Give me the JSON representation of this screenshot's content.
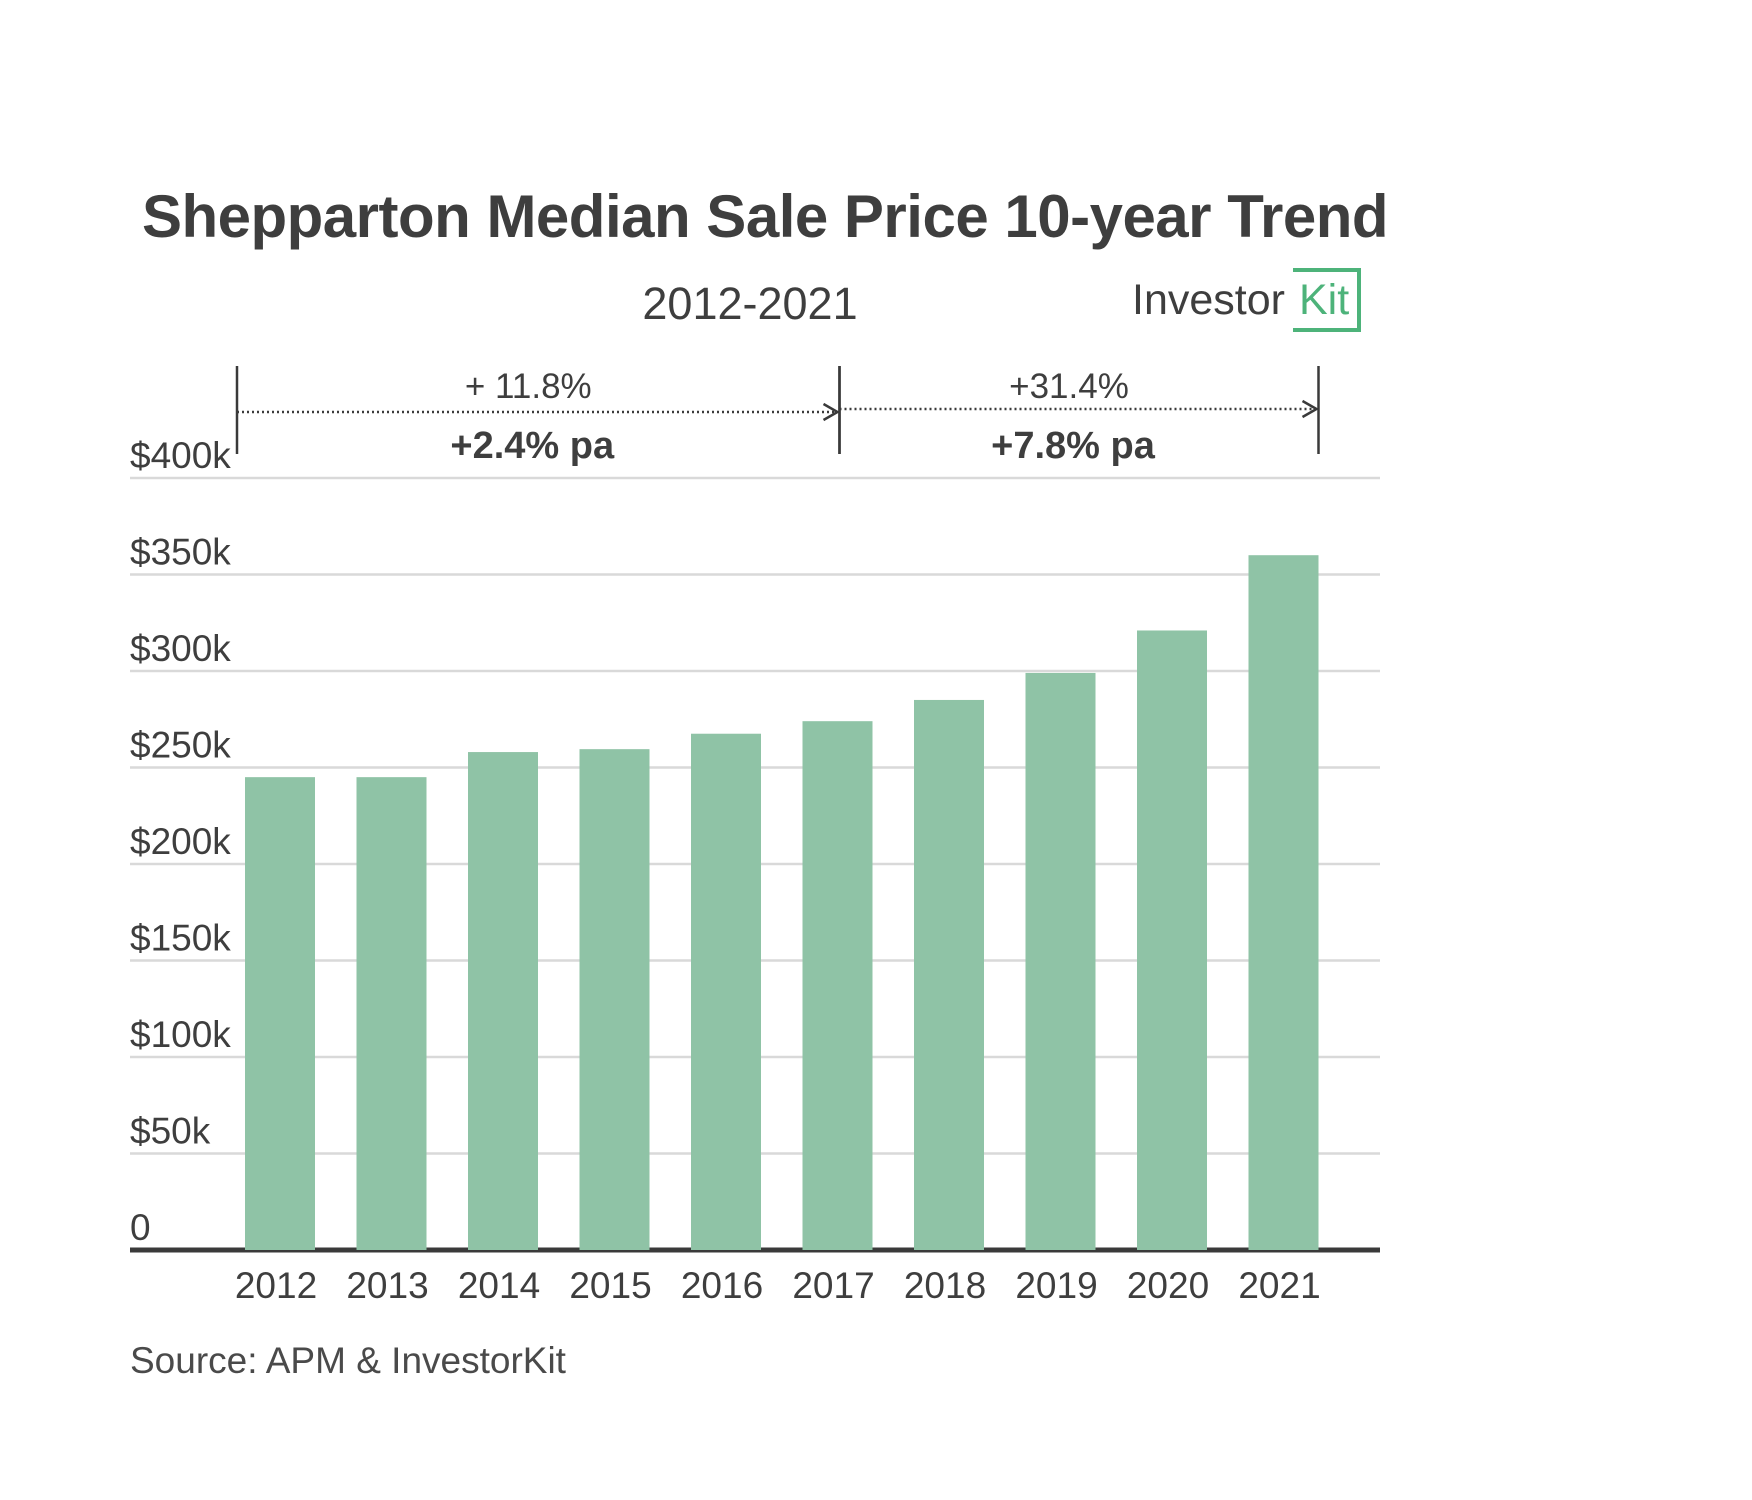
{
  "header": {
    "title": "Shepparton Median Sale Price 10-year Trend",
    "subtitle": "2012-2021",
    "logo_word": "Investor",
    "logo_kit": "Kit"
  },
  "footer": {
    "source": "Source: APM & InvestorKit"
  },
  "colors": {
    "bar": "#8fc3a6",
    "grid": "#d9d9d9",
    "axis": "#3a3a3a",
    "text": "#3e3e3e",
    "brand": "#4db37a"
  },
  "chart_data": {
    "type": "bar",
    "categories": [
      "2012",
      "2013",
      "2014",
      "2015",
      "2016",
      "2017",
      "2018",
      "2019",
      "2020",
      "2021"
    ],
    "values": [
      245000,
      245000,
      258000,
      259500,
      267500,
      274000,
      285000,
      299000,
      321000,
      360000
    ],
    "ylim": [
      0,
      400000
    ],
    "yticks": [
      0,
      50000,
      100000,
      150000,
      200000,
      250000,
      300000,
      350000,
      400000
    ],
    "ytick_labels": [
      "0",
      "$50k",
      "$100k",
      "$150k",
      "$200k",
      "$250k",
      "$300k",
      "$350k",
      "$400k"
    ],
    "grid": true,
    "annotations": [
      {
        "from": "2012",
        "to": "2017",
        "change": "+ 11.8%",
        "annual": "+2.4% pa"
      },
      {
        "from": "2017",
        "to": "2021",
        "change": "+31.4%",
        "annual": "+7.8% pa"
      }
    ]
  }
}
